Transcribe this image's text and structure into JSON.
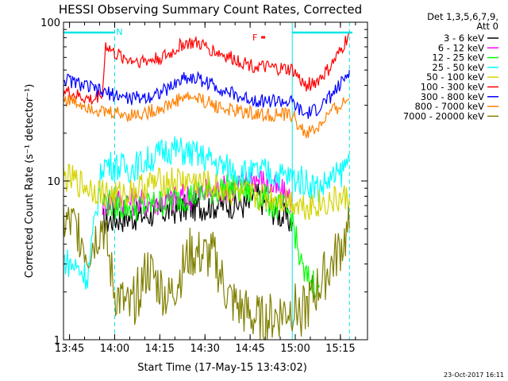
{
  "chart_data": {
    "type": "line",
    "title": "HESSI Observing Summary Count Rates, Corrected",
    "xlabel": "Start Time (17-May-15 13:43:02)",
    "ylabel": "Corrected Count Rate (s⁻¹ detector⁻¹)",
    "x_unit": "minutes after 13:43:02",
    "xlim": [
      0,
      101
    ],
    "ylim": [
      1,
      100
    ],
    "yscale": "log",
    "x_ticks": [
      "13:45",
      "14:00",
      "14:15",
      "14:30",
      "14:45",
      "15:00",
      "15:15"
    ],
    "x_tick_minutes": [
      2,
      17,
      32,
      47,
      62,
      77,
      92
    ],
    "y_ticks": [
      "1",
      "10",
      "100"
    ],
    "legend_header": [
      "Det 1,3,5,6,7,9,",
      "Att 0"
    ],
    "legend_position": "right-outside",
    "flag_labels": [
      {
        "label": "N",
        "color": "#00e5e5",
        "x_start": 0,
        "x_end": 17
      },
      {
        "label": "N",
        "color": "#00e5e5",
        "x_start": 76,
        "x_end": 96
      },
      {
        "label": "F",
        "color": "#ff0000",
        "x_start": 62,
        "x_end": 67
      }
    ],
    "event_lines": [
      {
        "x": 0,
        "color": "#00e5e5",
        "style": "solid"
      },
      {
        "x": 17,
        "color": "#00e5e5",
        "style": "dashed"
      },
      {
        "x": 76,
        "color": "#00e5e5",
        "style": "solid"
      },
      {
        "x": 95,
        "color": "#00e5e5",
        "style": "dashed"
      }
    ],
    "series": [
      {
        "name": "3 - 6 keV",
        "color": "#000000",
        "points": [
          [
            13,
            5.5
          ],
          [
            17,
            5.8
          ],
          [
            25,
            6.0
          ],
          [
            35,
            6.5
          ],
          [
            47,
            7.0
          ],
          [
            55,
            7.2
          ],
          [
            62,
            7.0
          ],
          [
            63,
            8.5
          ],
          [
            66,
            7.5
          ],
          [
            70,
            6.5
          ],
          [
            74,
            5.8
          ],
          [
            76,
            5.5
          ]
        ]
      },
      {
        "name": "6 - 12 keV",
        "color": "#ff00ff",
        "points": [
          [
            13,
            7.2
          ],
          [
            17,
            7.5
          ],
          [
            25,
            7.3
          ],
          [
            35,
            7.5
          ],
          [
            47,
            8.5
          ],
          [
            55,
            9.0
          ],
          [
            60,
            9.5
          ],
          [
            62,
            10.5
          ],
          [
            63,
            10.5
          ],
          [
            66,
            10.0
          ],
          [
            70,
            9.0
          ],
          [
            74,
            8.0
          ],
          [
            76,
            7.5
          ]
        ]
      },
      {
        "name": "12 - 25 keV",
        "color": "#00ff00",
        "points": [
          [
            13,
            7.5
          ],
          [
            17,
            7.0
          ],
          [
            25,
            6.8
          ],
          [
            35,
            7.5
          ],
          [
            47,
            8.5
          ],
          [
            55,
            9.0
          ],
          [
            62,
            8.5
          ],
          [
            66,
            8.0
          ],
          [
            70,
            7.0
          ],
          [
            74,
            6.5
          ],
          [
            76,
            6.0
          ],
          [
            78,
            3.5
          ],
          [
            80,
            2.5
          ],
          [
            85,
            2.2
          ]
        ]
      },
      {
        "name": "25 - 50 keV",
        "color": "#00ffff",
        "points": [
          [
            0,
            3.2
          ],
          [
            5,
            2.8
          ],
          [
            8,
            2.5
          ],
          [
            13,
            13.0
          ],
          [
            17,
            12.5
          ],
          [
            22,
            12.0
          ],
          [
            28,
            13.5
          ],
          [
            35,
            16.0
          ],
          [
            42,
            15.0
          ],
          [
            47,
            14.0
          ],
          [
            52,
            12.5
          ],
          [
            58,
            11.5
          ],
          [
            62,
            11.0
          ],
          [
            66,
            11.5
          ],
          [
            70,
            11.0
          ],
          [
            76,
            10.5
          ],
          [
            80,
            10.0
          ],
          [
            85,
            9.0
          ],
          [
            88,
            10.0
          ],
          [
            92,
            11.0
          ],
          [
            95,
            14.0
          ]
        ]
      },
      {
        "name": "50 - 100 keV",
        "color": "#d4d400",
        "points": [
          [
            0,
            10.5
          ],
          [
            4,
            10.0
          ],
          [
            6,
            9.5
          ],
          [
            13,
            8.5
          ],
          [
            17,
            8.0
          ],
          [
            22,
            8.5
          ],
          [
            28,
            9.5
          ],
          [
            35,
            10.0
          ],
          [
            42,
            10.0
          ],
          [
            47,
            9.5
          ],
          [
            55,
            8.5
          ],
          [
            62,
            8.0
          ],
          [
            70,
            7.8
          ],
          [
            76,
            7.5
          ],
          [
            80,
            7.0
          ],
          [
            85,
            7.2
          ],
          [
            90,
            7.5
          ],
          [
            95,
            7.8
          ]
        ]
      },
      {
        "name": "100 - 300 keV",
        "color": "#ff0000",
        "points": [
          [
            0,
            37
          ],
          [
            5,
            34
          ],
          [
            10,
            32
          ],
          [
            13,
            37
          ],
          [
            14,
            72
          ],
          [
            17,
            63
          ],
          [
            22,
            58
          ],
          [
            28,
            57
          ],
          [
            35,
            62
          ],
          [
            40,
            74
          ],
          [
            45,
            73
          ],
          [
            50,
            66
          ],
          [
            55,
            60
          ],
          [
            60,
            56
          ],
          [
            62,
            54
          ],
          [
            66,
            52
          ],
          [
            70,
            51
          ],
          [
            76,
            50
          ],
          [
            80,
            40
          ],
          [
            84,
            42
          ],
          [
            88,
            50
          ],
          [
            92,
            65
          ],
          [
            95,
            85
          ]
        ]
      },
      {
        "name": "300 - 800 keV",
        "color": "#0000ff",
        "points": [
          [
            0,
            44
          ],
          [
            5,
            41
          ],
          [
            10,
            38
          ],
          [
            13,
            36
          ],
          [
            17,
            35
          ],
          [
            22,
            33
          ],
          [
            28,
            34
          ],
          [
            35,
            38
          ],
          [
            40,
            45
          ],
          [
            45,
            44
          ],
          [
            50,
            40
          ],
          [
            55,
            36
          ],
          [
            60,
            33
          ],
          [
            62,
            33
          ],
          [
            66,
            32
          ],
          [
            70,
            32
          ],
          [
            76,
            31
          ],
          [
            80,
            26
          ],
          [
            84,
            28
          ],
          [
            88,
            33
          ],
          [
            92,
            40
          ],
          [
            95,
            50
          ]
        ]
      },
      {
        "name": "800 - 7000 keV",
        "color": "#ff8000",
        "points": [
          [
            0,
            33
          ],
          [
            5,
            31
          ],
          [
            10,
            29
          ],
          [
            13,
            27
          ],
          [
            17,
            27
          ],
          [
            22,
            26
          ],
          [
            28,
            27
          ],
          [
            35,
            30
          ],
          [
            40,
            34
          ],
          [
            45,
            33
          ],
          [
            50,
            30
          ],
          [
            55,
            28
          ],
          [
            60,
            27
          ],
          [
            62,
            27
          ],
          [
            66,
            26
          ],
          [
            70,
            26
          ],
          [
            76,
            26
          ],
          [
            80,
            20
          ],
          [
            84,
            21
          ],
          [
            88,
            26
          ],
          [
            92,
            30
          ],
          [
            95,
            33
          ]
        ]
      },
      {
        "name": "7000 - 20000 keV",
        "color": "#808000",
        "points": [
          [
            0,
            5.5
          ],
          [
            5,
            5.0
          ],
          [
            8,
            3.5
          ],
          [
            13,
            5.5
          ],
          [
            17,
            2.0
          ],
          [
            22,
            1.5
          ],
          [
            28,
            2.8
          ],
          [
            35,
            1.8
          ],
          [
            42,
            3.5
          ],
          [
            50,
            3.3
          ],
          [
            55,
            1.8
          ],
          [
            62,
            1.4
          ],
          [
            66,
            1.3
          ],
          [
            70,
            1.4
          ],
          [
            76,
            1.6
          ],
          [
            80,
            1.5
          ],
          [
            85,
            2.2
          ],
          [
            90,
            3.2
          ],
          [
            95,
            5.0
          ]
        ]
      }
    ]
  },
  "footer": {
    "date_stamp": "23-Oct-2017 16:11"
  }
}
